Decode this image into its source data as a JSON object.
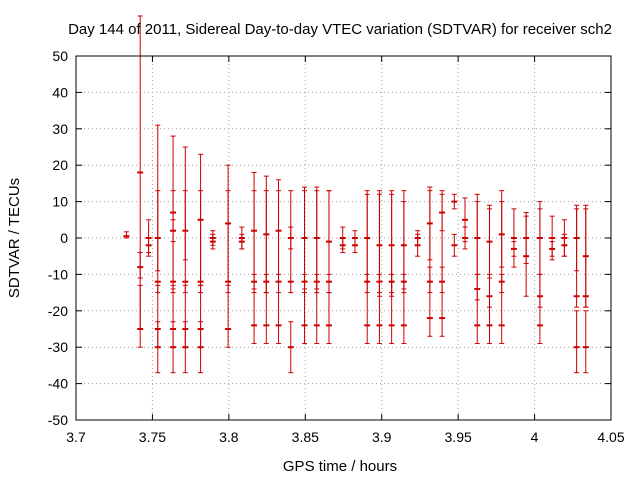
{
  "chart_data": {
    "type": "scatter",
    "title": "Day 144 of 2011, Sidereal Day-to-day VTEC variation (SDTVAR) for receiver sch2",
    "xlabel": "GPS time / hours",
    "ylabel": "SDTVAR / TECUs",
    "xlim": [
      3.7,
      4.05
    ],
    "ylim": [
      -50,
      50
    ],
    "x_ticks": [
      3.7,
      3.75,
      3.8,
      3.85,
      3.9,
      3.95,
      4.0,
      4.05
    ],
    "x_tick_labels": [
      "3.7",
      "3.75",
      "3.8",
      "3.85",
      "3.9",
      "3.95",
      "4",
      "4.05"
    ],
    "y_ticks": [
      -50,
      -40,
      -30,
      -20,
      -10,
      0,
      10,
      20,
      30,
      40,
      50
    ],
    "y_tick_labels": [
      "-50",
      "-40",
      "-30",
      "-20",
      "-10",
      "0",
      "10",
      "20",
      "30",
      "40",
      "50"
    ],
    "grid": true,
    "series_color": "#cc0000",
    "series": [
      {
        "name": "SDTVAR",
        "points": [
          [
            3.733,
            0.5,
            0.5,
            1.2
          ],
          [
            3.742,
            18,
            43,
            43
          ],
          [
            3.742,
            -8,
            3,
            4
          ],
          [
            3.742,
            -25,
            5,
            12
          ],
          [
            3.7475,
            0,
            5,
            5
          ],
          [
            3.7475,
            -2,
            2,
            2
          ],
          [
            3.7535,
            0,
            9,
            31
          ],
          [
            3.7535,
            -12,
            3,
            25
          ],
          [
            3.7535,
            -25,
            5,
            12
          ],
          [
            3.7535,
            -30,
            7,
            7
          ],
          [
            3.7635,
            7,
            21,
            21
          ],
          [
            3.7635,
            2,
            3,
            3
          ],
          [
            3.7635,
            -12,
            3,
            25
          ],
          [
            3.7635,
            -25,
            5,
            12
          ],
          [
            3.7635,
            -30,
            7,
            7
          ],
          [
            3.7715,
            2,
            8,
            23
          ],
          [
            3.7715,
            -12,
            3,
            25
          ],
          [
            3.7715,
            -25,
            5,
            12
          ],
          [
            3.7715,
            -30,
            7,
            7
          ],
          [
            3.7815,
            5,
            18,
            18
          ],
          [
            3.7815,
            -12,
            3,
            25
          ],
          [
            3.7815,
            -25,
            5,
            12
          ],
          [
            3.7815,
            -30,
            7,
            7
          ],
          [
            3.7895,
            0,
            2,
            2
          ],
          [
            3.7895,
            -1,
            2,
            2
          ],
          [
            3.7995,
            4,
            16,
            16
          ],
          [
            3.7995,
            -12,
            3,
            25
          ],
          [
            3.7995,
            -25,
            5,
            12
          ],
          [
            3.8085,
            0,
            3,
            3
          ],
          [
            3.8085,
            -1,
            2,
            2
          ],
          [
            3.8165,
            2,
            16,
            16
          ],
          [
            3.8165,
            -12,
            3,
            25
          ],
          [
            3.8165,
            -24,
            5,
            14
          ],
          [
            3.8245,
            1,
            16,
            16
          ],
          [
            3.8245,
            -12,
            3,
            25
          ],
          [
            3.8245,
            -24,
            5,
            14
          ],
          [
            3.8325,
            2,
            14,
            14
          ],
          [
            3.8325,
            -12,
            3,
            25
          ],
          [
            3.8325,
            -24,
            5,
            14
          ],
          [
            3.8405,
            0,
            3,
            3
          ],
          [
            3.8405,
            -12,
            3,
            25
          ],
          [
            3.8405,
            -30,
            7,
            7
          ],
          [
            3.8495,
            0,
            14,
            14
          ],
          [
            3.8495,
            -12,
            3,
            25
          ],
          [
            3.8495,
            -24,
            5,
            14
          ],
          [
            3.8575,
            0,
            14,
            14
          ],
          [
            3.8575,
            -12,
            3,
            25
          ],
          [
            3.8575,
            -24,
            5,
            14
          ],
          [
            3.8655,
            -1,
            14,
            14
          ],
          [
            3.8655,
            -12,
            3,
            25
          ],
          [
            3.8655,
            -24,
            5,
            14
          ],
          [
            3.8745,
            0,
            3,
            3
          ],
          [
            3.8745,
            -2,
            2,
            2
          ],
          [
            3.8825,
            0,
            2,
            2
          ],
          [
            3.8825,
            -2,
            2,
            2
          ],
          [
            3.8905,
            0,
            12,
            12
          ],
          [
            3.8905,
            -12,
            3,
            25
          ],
          [
            3.8905,
            -24,
            5,
            14
          ],
          [
            3.8985,
            -2,
            14,
            14
          ],
          [
            3.8985,
            -12,
            3,
            25
          ],
          [
            3.8985,
            -24,
            5,
            14
          ],
          [
            3.9065,
            -2,
            14,
            14
          ],
          [
            3.9065,
            -12,
            3,
            25
          ],
          [
            3.9065,
            -24,
            5,
            14
          ],
          [
            3.9145,
            -2,
            12,
            12
          ],
          [
            3.9145,
            -12,
            3,
            25
          ],
          [
            3.9145,
            -24,
            5,
            14
          ],
          [
            3.9235,
            0,
            2,
            2
          ],
          [
            3.9235,
            -2,
            3,
            3
          ],
          [
            3.9315,
            4,
            10,
            10
          ],
          [
            3.9315,
            -12,
            3,
            25
          ],
          [
            3.9315,
            -22,
            5,
            14
          ],
          [
            3.9395,
            7,
            5,
            5
          ],
          [
            3.9395,
            -12,
            3,
            25
          ],
          [
            3.9395,
            -22,
            5,
            14
          ],
          [
            3.9475,
            10,
            2,
            2
          ],
          [
            3.9475,
            -2,
            3,
            3
          ],
          [
            3.9545,
            5,
            6,
            6
          ],
          [
            3.9545,
            0,
            3,
            3
          ],
          [
            3.9625,
            0,
            10,
            10
          ],
          [
            3.9625,
            -14,
            3,
            26
          ],
          [
            3.9625,
            -24,
            5,
            14
          ],
          [
            3.9705,
            -1,
            10,
            10
          ],
          [
            3.9705,
            -16,
            3,
            24
          ],
          [
            3.9705,
            -24,
            5,
            14
          ],
          [
            3.9785,
            1,
            9,
            9
          ],
          [
            3.9785,
            -12,
            3,
            25
          ],
          [
            3.9785,
            -24,
            5,
            14
          ],
          [
            3.9865,
            0,
            8,
            8
          ],
          [
            3.9865,
            -3,
            2,
            2
          ],
          [
            3.9945,
            0,
            7,
            7
          ],
          [
            3.9945,
            -5,
            11,
            11
          ],
          [
            4.0035,
            0,
            10,
            10
          ],
          [
            4.0035,
            -16,
            3,
            24
          ],
          [
            4.0035,
            -24,
            5,
            14
          ],
          [
            4.0115,
            0,
            6,
            6
          ],
          [
            4.0115,
            -3,
            2,
            2
          ],
          [
            4.0195,
            0,
            5,
            5
          ],
          [
            4.0195,
            -2,
            3,
            3
          ],
          [
            4.0275,
            0,
            9,
            9
          ],
          [
            4.0275,
            -16,
            3,
            24
          ],
          [
            4.0275,
            -30,
            7,
            10
          ],
          [
            4.0335,
            -5,
            14,
            14
          ],
          [
            4.0335,
            -16,
            3,
            24
          ],
          [
            4.0335,
            -30,
            7,
            10
          ]
        ]
      }
    ]
  }
}
